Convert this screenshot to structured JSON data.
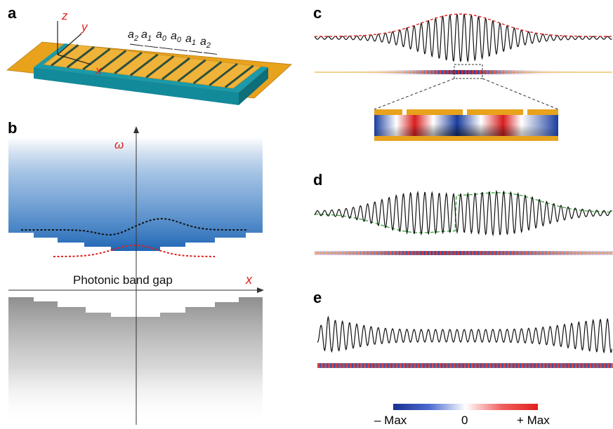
{
  "panels": {
    "a": "a",
    "b": "b",
    "c": "c",
    "d": "d",
    "e": "e"
  },
  "panel_a": {
    "axes": {
      "z": "z",
      "y": "y",
      "x": "x"
    },
    "lattice_labels": [
      {
        "base": "a",
        "sub": "2"
      },
      {
        "base": "a",
        "sub": "1"
      },
      {
        "base": "a",
        "sub": "0"
      },
      {
        "base": "a",
        "sub": "0"
      },
      {
        "base": "a",
        "sub": "1"
      },
      {
        "base": "a",
        "sub": "2"
      }
    ]
  },
  "panel_b": {
    "omega_label": "ω",
    "x_label": "x",
    "band_gap_label": "Photonic band gap"
  },
  "colorbar": {
    "min_label": "– Max",
    "mid_label": "0",
    "max_label": "+ Max"
  },
  "colors": {
    "gold": "#E8A21C",
    "teal": "#1A9AAA",
    "blue_band": "#1F66B5",
    "gray_band": "#8E8E8E",
    "red_accent": "#E0201C",
    "green_envelope": "#3CB043",
    "field_red": "#D81E1E",
    "field_blue": "#1A3D9E"
  }
}
